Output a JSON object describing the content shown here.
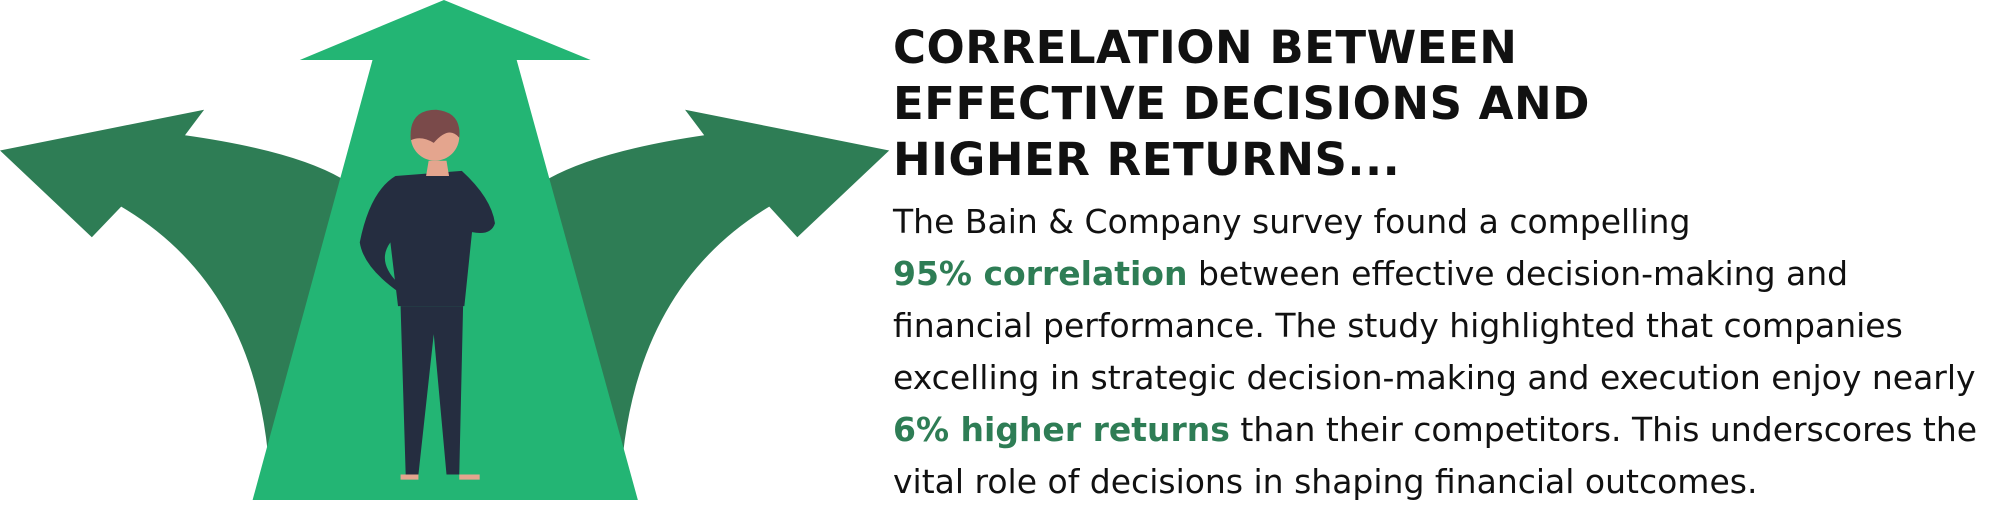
{
  "header": {
    "title": "CORRELATION BETWEEN EFFECTIVE DECISIONS AND HIGHER RETURNS..."
  },
  "body": {
    "lines": [
      [
        "The Bain & Company survey found a compelling"
      ],
      [
        "95% correlation",
        "between effective decision-making and"
      ],
      [
        "financial performance. The study highlighted that companies"
      ],
      [
        "excelling in strategic decision-making and execution enjoy nearly"
      ],
      [
        "6% higher returns",
        "than their competitors. This underscores the"
      ],
      [
        "vital role of decisions in shaping financial outcomes."
      ]
    ]
  }
}
